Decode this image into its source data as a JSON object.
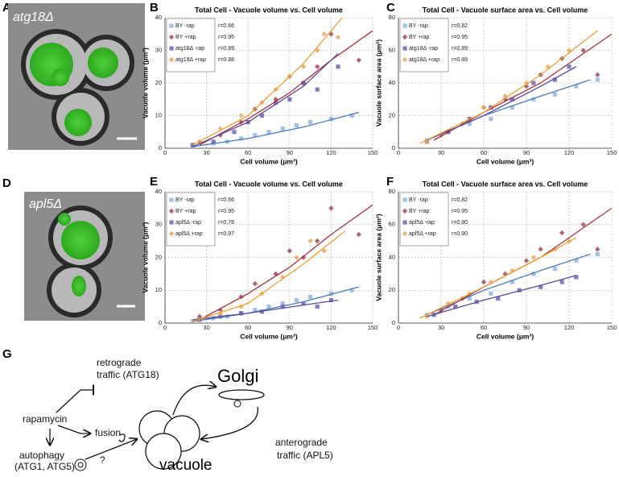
{
  "panels": [
    "A",
    "B",
    "C",
    "D",
    "E",
    "F",
    "G"
  ],
  "images": [
    {
      "label": "atg18Δ"
    },
    {
      "label": "apl5Δ"
    }
  ],
  "chart_data": [
    {
      "type": "scatter",
      "title": "Total Cell - Vacuole volume vs. Cell volume",
      "x_label": "Cell volume (μm³)",
      "y_label": "Vacuole volume (μm³)",
      "xlim": [
        0,
        150
      ],
      "xticks": [
        0,
        30,
        60,
        90,
        120,
        150
      ],
      "ylim": [
        0,
        40
      ],
      "yticks": [
        0,
        10,
        20,
        30,
        40
      ],
      "grid": true,
      "legend": "upper left",
      "series": [
        {
          "name": "BY -rap",
          "annotation": "r=0.66",
          "marker": "square",
          "color": "#8fb0d8",
          "line_color": "#4a7cc4",
          "x": [
            20,
            35,
            45,
            55,
            65,
            75,
            85,
            95,
            105,
            120,
            135
          ],
          "values": [
            0.5,
            1.5,
            2,
            3,
            4,
            5,
            6,
            7,
            8,
            9,
            10
          ],
          "fit": {
            "x": [
              20,
              60,
              100,
              140
            ],
            "values": [
              0.5,
              3,
              6.5,
              11
            ]
          }
        },
        {
          "name": "BY +rap",
          "annotation": "r=0.95",
          "marker": "diamond",
          "color": "#9c4a5a",
          "line_color": "#a8303c",
          "x": [
            25,
            40,
            55,
            65,
            80,
            90,
            100,
            110,
            120,
            140
          ],
          "values": [
            2,
            4,
            8,
            12,
            15,
            22,
            20,
            25,
            35,
            27
          ],
          "fit": {
            "x": [
              25,
              60,
              90,
              120,
              150
            ],
            "values": [
              1,
              9,
              17,
              27,
              36
            ]
          }
        },
        {
          "name": "atg18Δ -rap",
          "annotation": "r=0.89",
          "marker": "square",
          "color": "#6a5aa8",
          "line_color": "#5a4a9c",
          "x": [
            20,
            35,
            50,
            60,
            70,
            80,
            90,
            100,
            110,
            125
          ],
          "values": [
            1,
            2,
            5,
            8,
            10,
            14,
            15,
            20,
            18,
            25
          ],
          "fit": {
            "x": [
              20,
              60,
              100,
              125
            ],
            "values": [
              0.5,
              8,
              19,
              29
            ]
          }
        },
        {
          "name": "atg18Δ +rap",
          "annotation": "r=0.88",
          "marker": "diamond",
          "color": "#e8a860",
          "line_color": "#f0a030",
          "x": [
            25,
            40,
            55,
            70,
            80,
            90,
            100,
            110,
            115,
            125
          ],
          "values": [
            2,
            6,
            10,
            14,
            18,
            22,
            25,
            30,
            35,
            34
          ],
          "fit": {
            "x": [
              20,
              60,
              100,
              128
            ],
            "values": [
              1,
              10,
              26,
              40
            ]
          }
        }
      ]
    },
    {
      "type": "scatter",
      "title": "Total Cell - Vacuole surface area vs. Cell volume",
      "x_label": "Cell volume (μm³)",
      "y_label": "Vacuole surface area (μm²)",
      "xlim": [
        0,
        150
      ],
      "xticks": [
        0,
        30,
        60,
        90,
        120,
        150
      ],
      "ylim": [
        0,
        80
      ],
      "yticks": [
        0,
        20,
        40,
        60,
        80
      ],
      "grid": true,
      "legend": "upper left",
      "series": [
        {
          "name": "BY -rap",
          "annotation": "r=0.82",
          "marker": "square",
          "color": "#8fb0d8",
          "line_color": "#4a7cc4",
          "x": [
            20,
            35,
            50,
            65,
            80,
            95,
            110,
            125,
            140
          ],
          "values": [
            5,
            10,
            15,
            18,
            25,
            30,
            33,
            38,
            42
          ],
          "fit": {
            "x": [
              20,
              60,
              100,
              135
            ],
            "values": [
              5,
              20,
              32,
              42
            ]
          }
        },
        {
          "name": "BY +rap",
          "annotation": "r=0.95",
          "marker": "diamond",
          "color": "#9c4a5a",
          "line_color": "#a8303c",
          "x": [
            30,
            45,
            60,
            75,
            90,
            100,
            115,
            130,
            140
          ],
          "values": [
            8,
            15,
            25,
            30,
            38,
            45,
            55,
            60,
            45
          ],
          "fit": {
            "x": [
              25,
              60,
              100,
              150
            ],
            "values": [
              5,
              22,
              40,
              70
            ]
          }
        },
        {
          "name": "atg18Δ -rap",
          "annotation": "r=0.89",
          "marker": "square",
          "color": "#6a5aa8",
          "line_color": "#5a4a9c",
          "x": [
            20,
            35,
            50,
            65,
            80,
            95,
            110,
            120
          ],
          "values": [
            4,
            10,
            18,
            25,
            30,
            40,
            42,
            50
          ],
          "fit": {
            "x": [
              20,
              60,
              100,
              125
            ],
            "values": [
              5,
              20,
              38,
              50
            ]
          }
        },
        {
          "name": "atg18Δ +rap",
          "annotation": "r=0.89",
          "marker": "diamond",
          "color": "#e8a860",
          "line_color": "#f0a030",
          "x": [
            20,
            30,
            45,
            60,
            75,
            90,
            105,
            120
          ],
          "values": [
            4,
            8,
            15,
            25,
            32,
            40,
            50,
            60
          ],
          "fit": {
            "x": [
              15,
              60,
              100,
              140
            ],
            "values": [
              3,
              22,
              45,
              72
            ]
          }
        }
      ]
    },
    {
      "type": "scatter",
      "title": "Total Cell - Vacuole volume vs. Cell volume",
      "x_label": "Cell volume (μm³)",
      "y_label": "Vacuole volume (μm³)",
      "xlim": [
        0,
        150
      ],
      "xticks": [
        0,
        30,
        60,
        90,
        120,
        150
      ],
      "ylim": [
        0,
        40
      ],
      "yticks": [
        0,
        10,
        20,
        30,
        40
      ],
      "grid": true,
      "legend": "upper left",
      "series": [
        {
          "name": "BY -rap",
          "annotation": "r=0.66",
          "marker": "square",
          "color": "#8fb0d8",
          "line_color": "#4a7cc4",
          "x": [
            20,
            35,
            45,
            55,
            65,
            75,
            85,
            95,
            105,
            120,
            135
          ],
          "values": [
            0.5,
            1.5,
            2,
            3,
            4,
            5,
            6,
            7,
            8,
            9,
            10
          ],
          "fit": {
            "x": [
              20,
              60,
              100,
              140
            ],
            "values": [
              0.5,
              3,
              6.5,
              11
            ]
          }
        },
        {
          "name": "BY +rap",
          "annotation": "r=0.95",
          "marker": "diamond",
          "color": "#9c4a5a",
          "line_color": "#a8303c",
          "x": [
            25,
            40,
            55,
            65,
            80,
            90,
            100,
            110,
            120,
            140
          ],
          "values": [
            2,
            4,
            8,
            12,
            15,
            22,
            20,
            25,
            35,
            27
          ],
          "fit": {
            "x": [
              25,
              60,
              90,
              120,
              150
            ],
            "values": [
              1,
              9,
              17,
              27,
              36
            ]
          }
        },
        {
          "name": "apl5Δ -rap",
          "annotation": "r=0.78",
          "marker": "square",
          "color": "#6a5aa8",
          "line_color": "#5a4a9c",
          "x": [
            25,
            40,
            55,
            70,
            85,
            100,
            110,
            120
          ],
          "values": [
            1,
            2,
            3,
            3.5,
            5,
            6,
            5,
            7
          ],
          "fit": {
            "x": [
              20,
              60,
              100,
              125
            ],
            "values": [
              1,
              3,
              5.5,
              7
            ]
          }
        },
        {
          "name": "apl5Δ +rap",
          "annotation": "r=0.97",
          "marker": "diamond",
          "color": "#e8a860",
          "line_color": "#f0a030",
          "x": [
            25,
            40,
            55,
            70,
            85,
            95,
            105,
            115
          ],
          "values": [
            1,
            3,
            5,
            9,
            14,
            20,
            25,
            22
          ],
          "fit": {
            "x": [
              20,
              60,
              100,
              130
            ],
            "values": [
              0.5,
              6,
              18,
              28
            ]
          }
        }
      ]
    },
    {
      "type": "scatter",
      "title": "Total Cell - Vacuole surface area vs. Cell volume",
      "x_label": "Cell volume (μm³)",
      "y_label": "Vacuole surface area (μm²)",
      "xlim": [
        0,
        150
      ],
      "xticks": [
        0,
        30,
        60,
        90,
        120,
        150
      ],
      "ylim": [
        0,
        80
      ],
      "yticks": [
        0,
        20,
        40,
        60,
        80
      ],
      "grid": true,
      "legend": "upper left",
      "series": [
        {
          "name": "BY -rap",
          "annotation": "r=0.82",
          "marker": "square",
          "color": "#8fb0d8",
          "line_color": "#4a7cc4",
          "x": [
            20,
            35,
            50,
            65,
            80,
            95,
            110,
            125,
            140
          ],
          "values": [
            5,
            10,
            15,
            18,
            25,
            30,
            33,
            38,
            42
          ],
          "fit": {
            "x": [
              20,
              60,
              100,
              135
            ],
            "values": [
              5,
              20,
              32,
              42
            ]
          }
        },
        {
          "name": "BY +rap",
          "annotation": "r=0.95",
          "marker": "diamond",
          "color": "#9c4a5a",
          "line_color": "#a8303c",
          "x": [
            30,
            45,
            60,
            75,
            90,
            100,
            115,
            130,
            140
          ],
          "values": [
            8,
            15,
            25,
            30,
            38,
            45,
            55,
            60,
            45
          ],
          "fit": {
            "x": [
              25,
              60,
              100,
              150
            ],
            "values": [
              5,
              22,
              40,
              70
            ]
          }
        },
        {
          "name": "apl5Δ -rap",
          "annotation": "r=0.80",
          "marker": "square",
          "color": "#6a5aa8",
          "line_color": "#5a4a9c",
          "x": [
            25,
            40,
            55,
            70,
            85,
            100,
            115,
            125
          ],
          "values": [
            5,
            10,
            13,
            15,
            20,
            22,
            25,
            28
          ],
          "fit": {
            "x": [
              20,
              60,
              100,
              125
            ],
            "values": [
              4,
              14,
              23,
              29
            ]
          }
        },
        {
          "name": "apl5Δ +rap",
          "annotation": "r=0.90",
          "marker": "diamond",
          "color": "#e8a860",
          "line_color": "#f0a030",
          "x": [
            20,
            35,
            50,
            65,
            80,
            95,
            110,
            120
          ],
          "values": [
            4,
            12,
            18,
            25,
            32,
            40,
            45,
            50
          ],
          "fit": {
            "x": [
              15,
              60,
              100,
              125
            ],
            "values": [
              3,
              22,
              40,
              52
            ]
          }
        }
      ]
    }
  ],
  "diagram": {
    "nodes": [
      {
        "label": "retrograde"
      },
      {
        "label": "traffic (ATG18)"
      },
      {
        "label": "rapamycin"
      },
      {
        "label": "fusion"
      },
      {
        "label": "autophagy"
      },
      {
        "label": "(ATG1, ATG5)"
      },
      {
        "label": "?"
      },
      {
        "label": "Golgi"
      },
      {
        "label": "anterograde"
      },
      {
        "label": "traffic (APL5)"
      },
      {
        "label": "vacuole"
      }
    ]
  }
}
